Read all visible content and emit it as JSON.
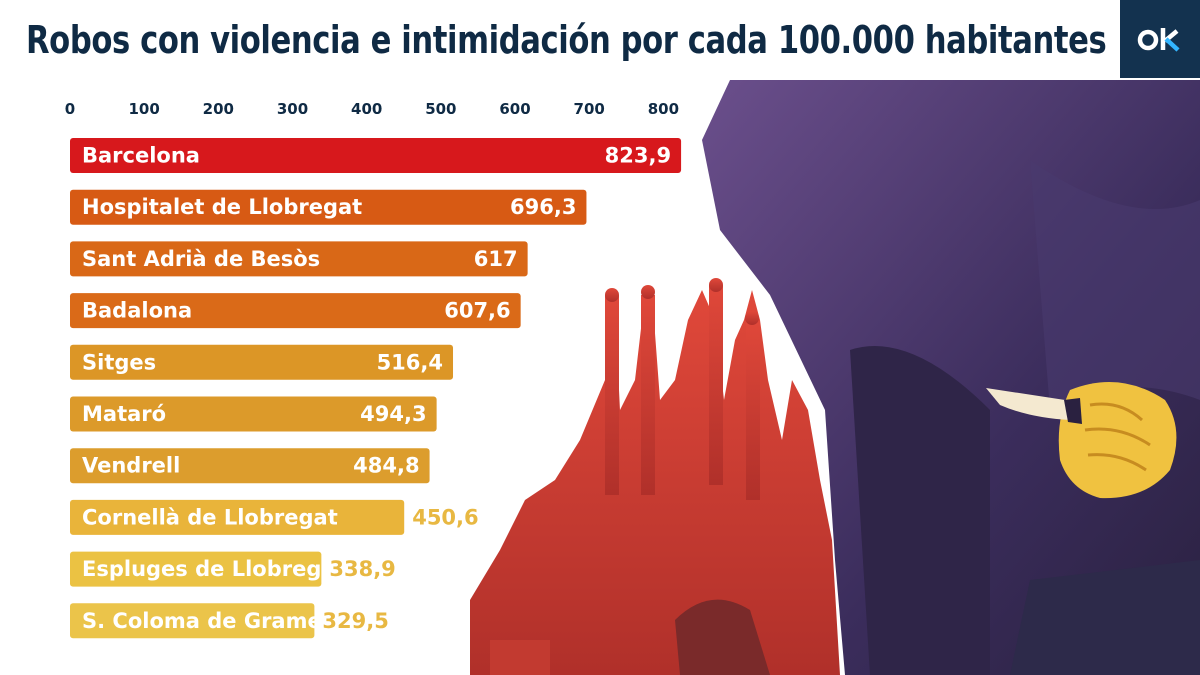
{
  "brand": {
    "logo_text": "ok",
    "logo_bg": "#13324f"
  },
  "chart_data": {
    "type": "bar",
    "orientation": "horizontal",
    "title": "Robos con violencia e intimidación por cada 100.000 habitantes",
    "xlabel": "",
    "ylabel": "",
    "xlim": [
      0,
      840
    ],
    "ticks": [
      "0",
      "100",
      "200",
      "300",
      "400",
      "500",
      "600",
      "700",
      "800"
    ],
    "tick_values": [
      0,
      100,
      200,
      300,
      400,
      500,
      600,
      700,
      800
    ],
    "grid": false,
    "categories": [
      "Barcelona",
      "Hospitalet de Llobregat",
      "Sant Adrià de Besòs",
      "Badalona",
      "Sitges",
      "Mataró",
      "Vendrell",
      "Cornellà de Llobregat",
      "Espluges de Llobregat",
      "S. Coloma de Gramenet"
    ],
    "values": [
      823.9,
      696.3,
      617,
      607.6,
      516.4,
      494.3,
      484.8,
      450.6,
      338.9,
      329.5
    ],
    "value_labels": [
      "823,9",
      "696,3",
      "617",
      "607,6",
      "516,4",
      "494,3",
      "484,8",
      "450,6",
      "338,9",
      "329,5"
    ],
    "colors": [
      "#d7181c",
      "#d75a14",
      "#d96817",
      "#da6a18",
      "#dc9626",
      "#dc9a2a",
      "#dc9d2d",
      "#e9b43a",
      "#ebc243",
      "#ebc44a"
    ],
    "value_inside": [
      true,
      true,
      true,
      true,
      true,
      true,
      true,
      false,
      false,
      false
    ],
    "value_outside_color": "#e8b842"
  }
}
